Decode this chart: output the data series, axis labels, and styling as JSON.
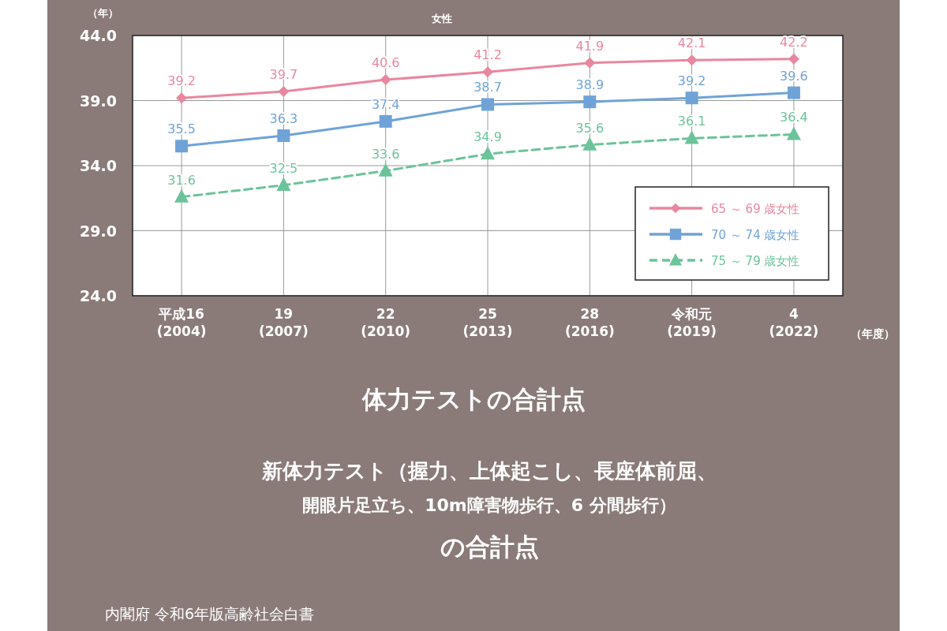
{
  "chart_data": {
    "type": "line",
    "title": "女性",
    "ylabel": "（年）",
    "xlabel": "（年度）",
    "categories": [
      "平成16\n(2004)",
      "19\n(2007)",
      "22\n(2010)",
      "25\n(2013)",
      "28\n(2016)",
      "令和元\n(2019)",
      "4\n(2022)"
    ],
    "series": [
      {
        "name": "65 ～ 69 歳女性",
        "color": "#e8879f",
        "marker": "diamond",
        "line_style": "solid",
        "values": [
          39.2,
          39.7,
          40.6,
          41.2,
          41.9,
          42.1,
          42.2
        ]
      },
      {
        "name": "70 ～ 74 歳女性",
        "color": "#6fa3d8",
        "marker": "square",
        "line_style": "solid",
        "values": [
          35.5,
          36.3,
          37.4,
          38.7,
          38.9,
          39.2,
          39.6
        ]
      },
      {
        "name": "75 ～ 79 歳女性",
        "color": "#6cc39a",
        "marker": "triangle",
        "line_style": "dashed",
        "values": [
          31.6,
          32.5,
          33.6,
          34.9,
          35.6,
          36.1,
          36.4
        ]
      }
    ],
    "ylim": [
      24,
      44
    ],
    "yticks": [
      {
        "value": 24,
        "label": "24.0"
      },
      {
        "value": 29,
        "label": "29.0"
      },
      {
        "value": 34,
        "label": "34.0"
      },
      {
        "value": 39,
        "label": "39.0"
      },
      {
        "value": 44,
        "label": "44.0"
      }
    ],
    "grid": true,
    "legend": "bottom right",
    "data_labels": true,
    "annotations": [
      "体力テストの合計点",
      "新体力テスト（握力、上体起こし、長座体前屈、",
      "開眼片足立ち、10m障害物歩行、6 分間歩行）",
      "の合計点",
      "内閣府 令和6年版高齢社会白書"
    ]
  }
}
